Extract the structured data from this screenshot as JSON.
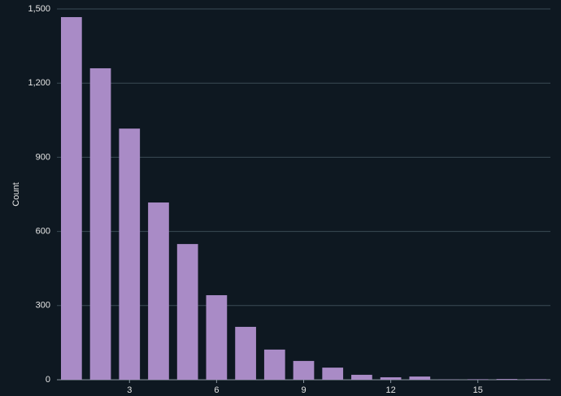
{
  "chart_data": {
    "type": "bar",
    "y_label": "Count",
    "x": [
      1,
      2,
      3,
      4,
      5,
      6,
      7,
      8,
      9,
      10,
      11,
      12,
      13,
      14,
      15,
      16,
      17
    ],
    "values": [
      1467,
      1260,
      1016,
      717,
      549,
      342,
      214,
      122,
      76,
      49,
      20,
      10,
      13,
      1,
      2,
      3,
      2
    ],
    "color": "#a98bc6",
    "xlim": [
      0.5,
      17.5
    ],
    "xticks": [
      3,
      6,
      9,
      12,
      15
    ],
    "ylim": [
      0,
      1500
    ],
    "yticks": [
      0,
      300,
      600,
      900,
      {
        "value": 1200,
        "label": "1,200"
      },
      {
        "value": 1500,
        "label": "1,500"
      }
    ],
    "grid": true
  }
}
